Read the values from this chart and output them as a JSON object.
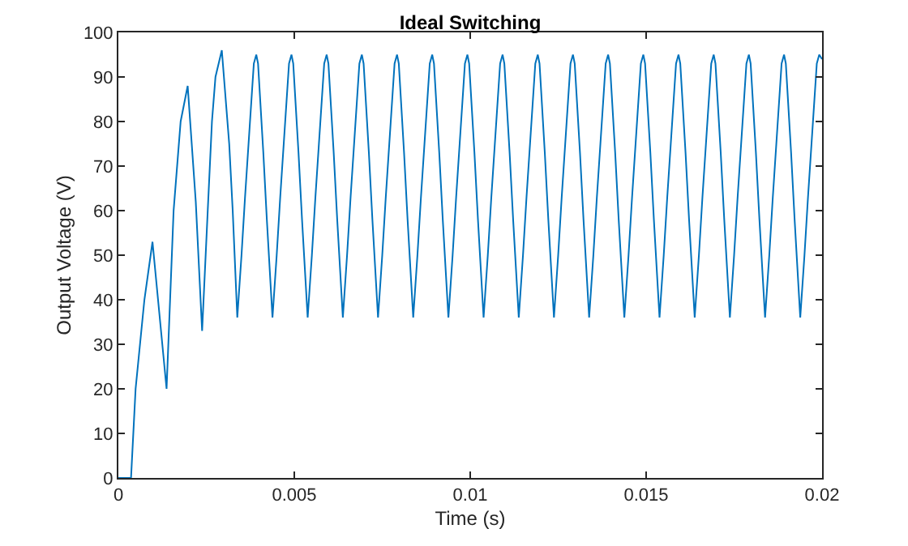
{
  "chart_data": {
    "type": "line",
    "title": "Ideal Switching",
    "xlabel": "Time (s)",
    "ylabel": "Output Voltage (V)",
    "xlim": [
      0,
      0.02
    ],
    "xticks": [
      0,
      0.005,
      0.01,
      0.015,
      0.02
    ],
    "ylim": [
      0,
      100
    ],
    "yticks": [
      0,
      10,
      20,
      30,
      40,
      50,
      60,
      70,
      80,
      90,
      100
    ],
    "marker": "none",
    "line_style": "solid",
    "x": [
      0,
      0.00036,
      0.00049,
      0.00074,
      0.00097,
      0.00137,
      0.00157,
      0.00177,
      0.00197,
      0.0022,
      0.00238,
      0.00254,
      0.00266,
      0.00276,
      0.00294,
      0.00315,
      0.00325,
      0.00338,
      0.0035,
      0.0036,
      0.0037,
      0.0038,
      0.00385,
      0.00392,
      0.00397,
      0.00412,
      0.00422,
      0.00438,
      0.0045,
      0.0046,
      0.0047,
      0.0048,
      0.00485,
      0.00492,
      0.00497,
      0.00512,
      0.00522,
      0.00538,
      0.0055,
      0.0056,
      0.0057,
      0.0058,
      0.00585,
      0.00592,
      0.00597,
      0.00612,
      0.00622,
      0.00638,
      0.0065,
      0.0066,
      0.0067,
      0.0068,
      0.00685,
      0.00692,
      0.00697,
      0.00712,
      0.00722,
      0.00738,
      0.0075,
      0.0076,
      0.0077,
      0.0078,
      0.00785,
      0.00792,
      0.00797,
      0.00812,
      0.00822,
      0.00838,
      0.0085,
      0.0086,
      0.0087,
      0.0088,
      0.00885,
      0.00892,
      0.00897,
      0.00912,
      0.00922,
      0.00938,
      0.0095,
      0.0096,
      0.0097,
      0.0098,
      0.00985,
      0.00992,
      0.00997,
      0.01012,
      0.01022,
      0.01038,
      0.0105,
      0.0106,
      0.0107,
      0.0108,
      0.01085,
      0.01092,
      0.01097,
      0.01112,
      0.01122,
      0.01138,
      0.0115,
      0.0116,
      0.0117,
      0.0118,
      0.01185,
      0.01192,
      0.01197,
      0.01212,
      0.01222,
      0.01238,
      0.0125,
      0.0126,
      0.0127,
      0.0128,
      0.01285,
      0.01292,
      0.01297,
      0.01312,
      0.01322,
      0.01338,
      0.0135,
      0.0136,
      0.0137,
      0.0138,
      0.01385,
      0.01392,
      0.01397,
      0.01412,
      0.01422,
      0.01438,
      0.0145,
      0.0146,
      0.0147,
      0.0148,
      0.01485,
      0.01492,
      0.01497,
      0.01512,
      0.01522,
      0.01538,
      0.0155,
      0.0156,
      0.0157,
      0.0158,
      0.01585,
      0.01592,
      0.01597,
      0.01612,
      0.01622,
      0.01638,
      0.0165,
      0.0166,
      0.0167,
      0.0168,
      0.01685,
      0.01692,
      0.01697,
      0.01712,
      0.01722,
      0.01738,
      0.0175,
      0.0176,
      0.0177,
      0.0178,
      0.01785,
      0.01792,
      0.01797,
      0.01812,
      0.01822,
      0.01838,
      0.0185,
      0.0186,
      0.0187,
      0.0188,
      0.01885,
      0.01892,
      0.01897,
      0.01912,
      0.01922,
      0.01938,
      0.0195,
      0.0196,
      0.0197,
      0.0198,
      0.01985,
      0.01992,
      0.02
    ],
    "series": [
      {
        "color": "#0072bd",
        "values": [
          0,
          0,
          20,
          40,
          53,
          20,
          60,
          80,
          88,
          62,
          33,
          60,
          80,
          90,
          96,
          75,
          60,
          36,
          50,
          63,
          75,
          87,
          93,
          95,
          93,
          73,
          58,
          36,
          50,
          63,
          75,
          87,
          93,
          95,
          93,
          73,
          58,
          36,
          50,
          63,
          75,
          87,
          93,
          95,
          93,
          73,
          58,
          36,
          50,
          63,
          75,
          87,
          93,
          95,
          93,
          73,
          58,
          36,
          50,
          63,
          75,
          87,
          93,
          95,
          93,
          73,
          58,
          36,
          50,
          63,
          75,
          87,
          93,
          95,
          93,
          73,
          58,
          36,
          50,
          63,
          75,
          87,
          93,
          95,
          93,
          73,
          58,
          36,
          50,
          63,
          75,
          87,
          93,
          95,
          93,
          73,
          58,
          36,
          50,
          63,
          75,
          87,
          93,
          95,
          93,
          73,
          58,
          36,
          50,
          63,
          75,
          87,
          93,
          95,
          93,
          73,
          58,
          36,
          50,
          63,
          75,
          87,
          93,
          95,
          93,
          73,
          58,
          36,
          50,
          63,
          75,
          87,
          93,
          95,
          93,
          73,
          58,
          36,
          50,
          63,
          75,
          87,
          93,
          95,
          93,
          73,
          58,
          36,
          50,
          63,
          75,
          87,
          93,
          95,
          93,
          73,
          58,
          36,
          50,
          63,
          75,
          87,
          93,
          95,
          93,
          73,
          58,
          36,
          50,
          63,
          75,
          87,
          93,
          95,
          93,
          73,
          58,
          36,
          50,
          63,
          75,
          87,
          93,
          95,
          94
        ]
      }
    ]
  }
}
